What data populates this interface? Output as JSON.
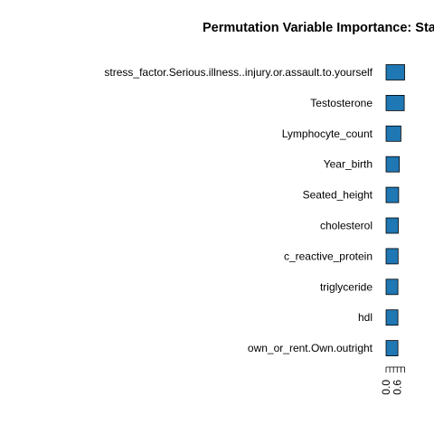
{
  "chart_data": {
    "type": "bar",
    "orientation": "horizontal",
    "title": "Permutation Variable Importance: Sta",
    "xlabel": "",
    "ylabel": "",
    "categories": [
      "stress_factor.Serious.illness..injury.or.assault.to.yourself",
      "Testosterone",
      "Lymphocyte_count",
      "Year_birth",
      "Seated_height",
      "cholesterol",
      "c_reactive_protein",
      "triglyceride",
      "hdl",
      "own_or_rent.Own.outright"
    ],
    "values": [
      1.0,
      0.98,
      0.8,
      0.72,
      0.68,
      0.66,
      0.65,
      0.64,
      0.64,
      0.64
    ],
    "xlim": [
      0,
      1.05
    ],
    "x_tick_labels": [
      "0.0",
      "0.6"
    ],
    "x_tick_values": [
      0.0,
      0.6
    ],
    "minor_ticks": [
      0.0,
      0.2,
      0.4,
      0.6,
      0.8,
      1.0
    ],
    "grid": false,
    "legend": "none",
    "bar_color": "#1f77b4"
  }
}
